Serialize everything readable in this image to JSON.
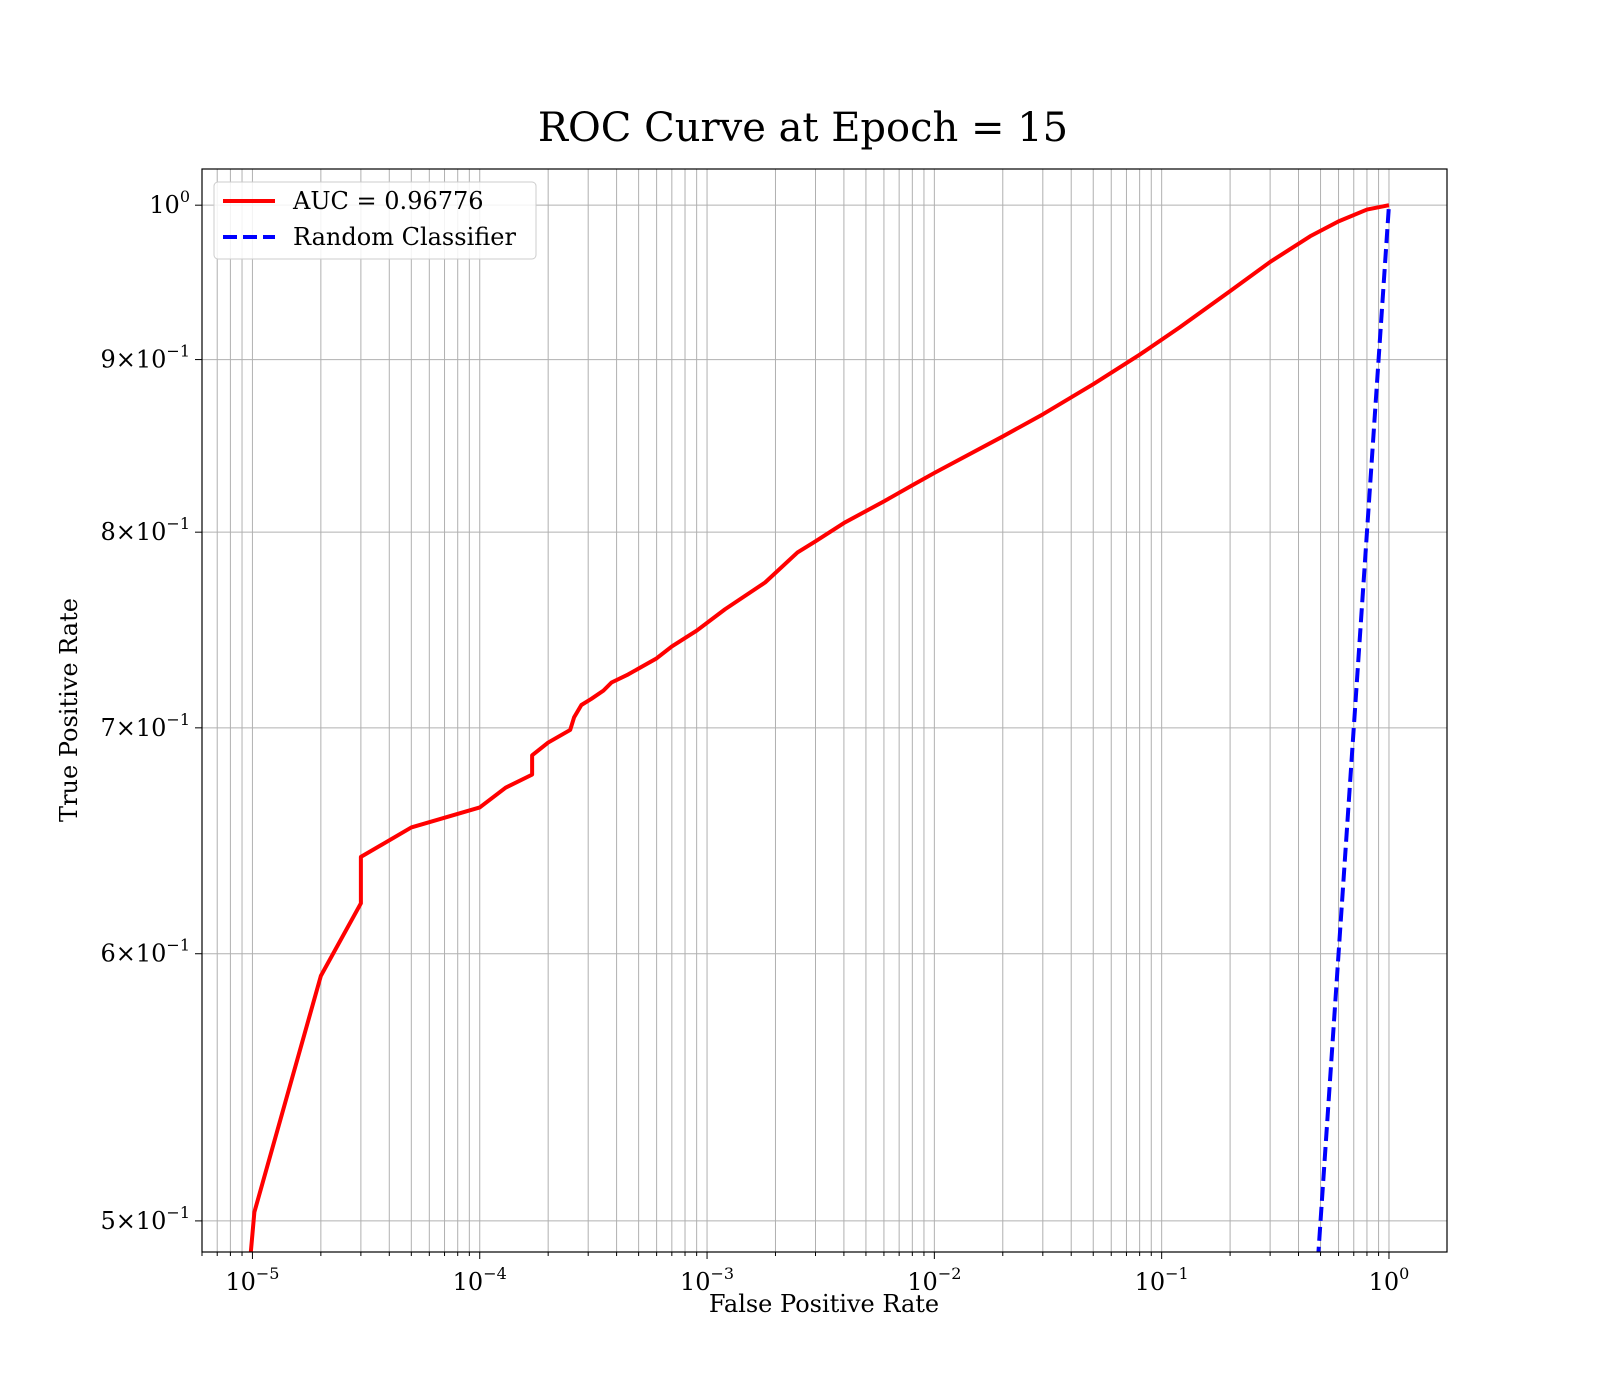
{
  "chart_data": {
    "type": "line",
    "title": "ROC Curve at Epoch = 15",
    "xlabel": "False Positive Rate",
    "ylabel": "True Positive Rate",
    "xscale": "log",
    "yscale": "log",
    "xlim": [
      6e-06,
      1.8
    ],
    "ylim": [
      0.4895,
      1.025
    ],
    "grid": true,
    "grid_minor": true,
    "legend_position": "upper-left",
    "x_ticks": [
      {
        "value": 1e-05,
        "base": "10",
        "exp": "−5"
      },
      {
        "value": 0.0001,
        "base": "10",
        "exp": "−4"
      },
      {
        "value": 0.001,
        "base": "10",
        "exp": "−3"
      },
      {
        "value": 0.01,
        "base": "10",
        "exp": "−2"
      },
      {
        "value": 0.1,
        "base": "10",
        "exp": "−1"
      },
      {
        "value": 1,
        "base": "10",
        "exp": "0"
      }
    ],
    "y_ticks": [
      {
        "value": 1.0,
        "mant": "",
        "base": "10",
        "exp": "0"
      },
      {
        "value": 0.9,
        "mant": "9×",
        "base": "10",
        "exp": "−1"
      },
      {
        "value": 0.8,
        "mant": "8×",
        "base": "10",
        "exp": "−1"
      },
      {
        "value": 0.7,
        "mant": "7×",
        "base": "10",
        "exp": "−1"
      },
      {
        "value": 0.6,
        "mant": "6×",
        "base": "10",
        "exp": "−1"
      },
      {
        "value": 0.5,
        "mant": "5×",
        "base": "10",
        "exp": "−1"
      }
    ],
    "series": [
      {
        "name": "AUC = 0.96776",
        "color": "#ff0000",
        "style": "solid",
        "x": [
          9.8e-06,
          1.02e-05,
          2e-05,
          3e-05,
          3e-05,
          5e-05,
          0.0001,
          0.00013,
          0.00017,
          0.00017,
          0.0002,
          0.00025,
          0.00026,
          0.00028,
          0.00031,
          0.00035,
          0.00038,
          0.00045,
          0.0006,
          0.0007,
          0.0009,
          0.0012,
          0.0018,
          0.0025,
          0.003,
          0.004,
          0.006,
          0.008,
          0.01,
          0.02,
          0.03,
          0.05,
          0.08,
          0.12,
          0.2,
          0.3,
          0.45,
          0.6,
          0.8,
          1.0
        ],
        "y": [
          0.488,
          0.503,
          0.591,
          0.621,
          0.641,
          0.654,
          0.663,
          0.672,
          0.678,
          0.687,
          0.693,
          0.699,
          0.705,
          0.711,
          0.714,
          0.718,
          0.722,
          0.726,
          0.734,
          0.74,
          0.748,
          0.759,
          0.773,
          0.789,
          0.795,
          0.805,
          0.817,
          0.826,
          0.833,
          0.854,
          0.867,
          0.885,
          0.903,
          0.92,
          0.943,
          0.962,
          0.979,
          0.989,
          0.997,
          1.0
        ]
      },
      {
        "name": "Random Classifier",
        "color": "#0000ff",
        "style": "dashed",
        "x": [
          0.48,
          0.6,
          0.7,
          0.8,
          0.9,
          1.0
        ],
        "y": [
          0.48,
          0.6,
          0.7,
          0.8,
          0.9,
          1.0
        ]
      }
    ]
  }
}
